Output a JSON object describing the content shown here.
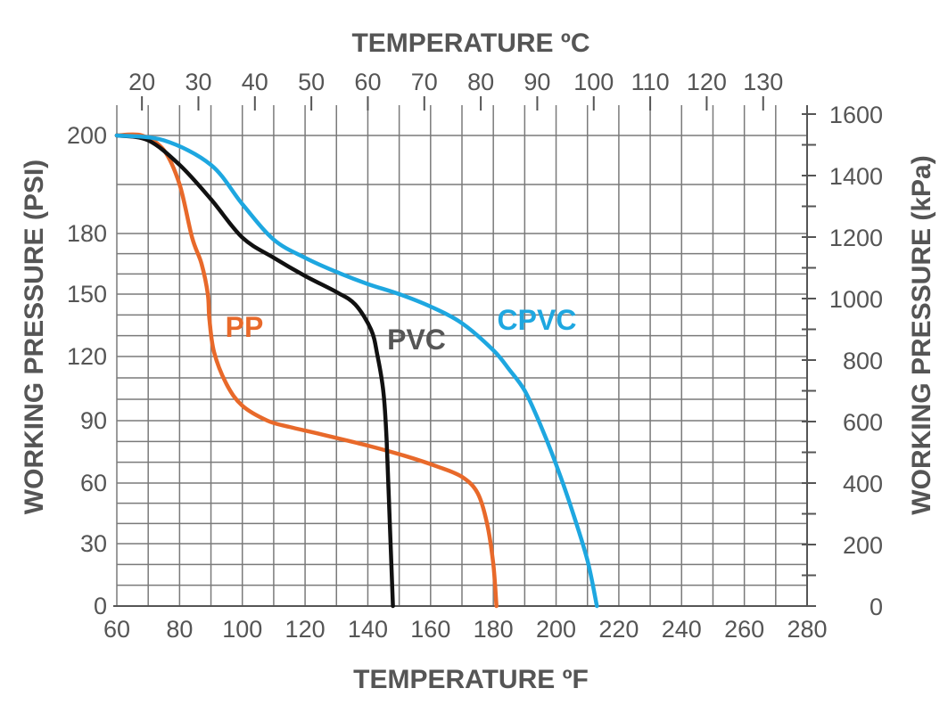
{
  "chart_data": {
    "type": "line",
    "title": "",
    "x_bottom": {
      "label": "TEMPERATURE ºF",
      "range": [
        60,
        280
      ],
      "ticks": [
        "60",
        "80",
        "100",
        "120",
        "140",
        "160",
        "180",
        "200",
        "220",
        "240",
        "260",
        "280"
      ]
    },
    "x_top": {
      "label": "TEMPERATURE ºC",
      "ticks": [
        "20",
        "30",
        "40",
        "50",
        "60",
        "70",
        "80",
        "90",
        "100",
        "110",
        "120",
        "130"
      ]
    },
    "y_left": {
      "label": "WORKING PRESSURE (PSI)",
      "range": [
        0,
        200
      ],
      "ticks": [
        "0",
        "30",
        "60",
        "90",
        "120",
        "150",
        "180",
        "200"
      ]
    },
    "y_right": {
      "label": "WORKING PRESSURE (kPa)",
      "ticks": [
        "0",
        "200",
        "400",
        "600",
        "800",
        "1000",
        "1200",
        "1400",
        "1600"
      ]
    },
    "grid": true,
    "series": [
      {
        "name": "PP",
        "color": "#e8692a",
        "x": [
          60,
          68,
          75,
          80,
          84,
          87,
          89,
          89.5,
          91,
          95,
          100,
          108,
          115,
          125,
          140,
          152,
          162,
          170,
          175,
          178,
          180,
          181
        ],
        "y": [
          200,
          200,
          197,
          190,
          178,
          165,
          150,
          138,
          122,
          107,
          97,
          90,
          87,
          83.5,
          78,
          73,
          68,
          63,
          55,
          40,
          20,
          0
        ]
      },
      {
        "name": "PVC",
        "color": "#111111",
        "x": [
          60,
          70,
          80,
          90,
          100,
          110,
          120,
          130,
          136,
          141,
          143,
          145,
          146,
          147,
          148
        ],
        "y": [
          200,
          199,
          194,
          187,
          178,
          168,
          159,
          151,
          145,
          133,
          121,
          103,
          80,
          40,
          0
        ]
      },
      {
        "name": "CPVC",
        "color": "#1ea7e0",
        "x": [
          60,
          75,
          90,
          100,
          110,
          120,
          130,
          140,
          150,
          160,
          170,
          180,
          185,
          190,
          195,
          200,
          205,
          210,
          213
        ],
        "y": [
          200,
          199,
          194,
          186,
          177,
          168,
          161,
          155,
          150,
          144,
          136,
          123,
          114,
          104,
          88,
          69,
          47,
          22,
          0
        ]
      }
    ]
  }
}
